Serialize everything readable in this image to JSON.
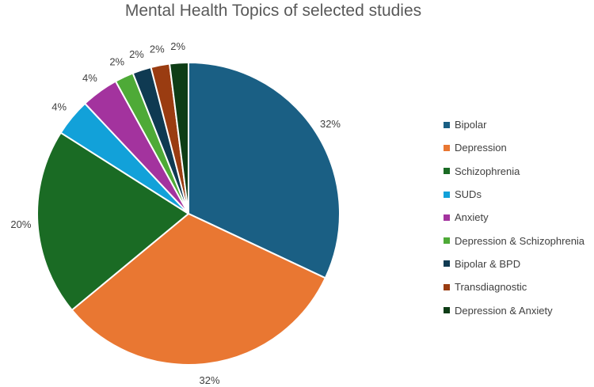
{
  "chart_data": {
    "type": "pie",
    "title": "Mental Health Topics of selected studies",
    "slices": [
      {
        "label": "Bipolar",
        "value": 32,
        "display": "32%",
        "color": "#1a5f84"
      },
      {
        "label": "Depression",
        "value": 32,
        "display": "32%",
        "color": "#e97732"
      },
      {
        "label": "Schizophrenia",
        "value": 20,
        "display": "20%",
        "color": "#1a6b24"
      },
      {
        "label": "SUDs",
        "value": 4,
        "display": "4%",
        "color": "#12a1d9"
      },
      {
        "label": "Anxiety",
        "value": 4,
        "display": "4%",
        "color": "#a3339e"
      },
      {
        "label": "Depression & Schizophrenia",
        "value": 2,
        "display": "2%",
        "color": "#4eaa37"
      },
      {
        "label": "Bipolar & BPD",
        "value": 2,
        "display": "2%",
        "color": "#0f3a52"
      },
      {
        "label": "Transdiagnostic",
        "value": 2,
        "display": "2%",
        "color": "#9a3c11"
      },
      {
        "label": "Depression & Anxiety",
        "value": 2,
        "display": "2%",
        "color": "#0e3d16"
      }
    ],
    "legend_position": "right"
  }
}
